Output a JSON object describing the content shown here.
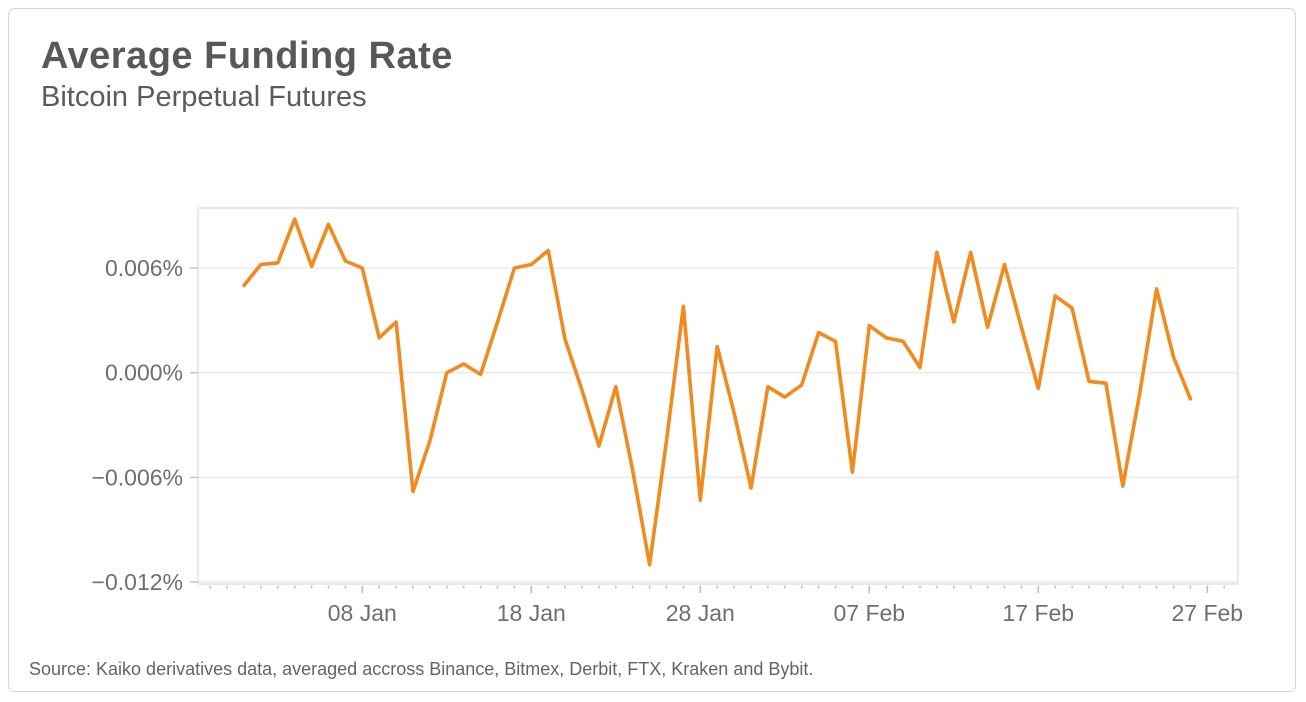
{
  "header": {
    "title": "Average Funding Rate",
    "subtitle": "Bitcoin Perpetual Futures"
  },
  "footer": {
    "source": "Source: Kaiko derivatives data, averaged accross Binance, Bitmex, Derbit, FTX, Kraken and Bybit."
  },
  "chart_data": {
    "type": "line",
    "title": "Average Funding Rate",
    "subtitle": "Bitcoin Perpetual Futures",
    "xlabel": "",
    "ylabel": "",
    "legend": "none",
    "grid": "horizontal",
    "ylim": [
      -0.0121,
      0.0094
    ],
    "line_color": "#f18a1f",
    "grid_color": "#ececec",
    "axis_border_color": "#dcdcdc",
    "tick_color": "#c6c6c6",
    "label_color": "#6f6f6f",
    "y_ticks": [
      {
        "label": "0.006%",
        "value": 0.006
      },
      {
        "label": "0.000%",
        "value": 0.0
      },
      {
        "label": "−0.006%",
        "value": -0.006
      },
      {
        "label": "−0.012%",
        "value": -0.012
      }
    ],
    "x_tick_labels": [
      "08 Jan",
      "18 Jan",
      "28 Jan",
      "07 Feb",
      "17 Feb",
      "27 Feb"
    ],
    "x": [
      "01 Jan",
      "02 Jan",
      "03 Jan",
      "04 Jan",
      "05 Jan",
      "06 Jan",
      "07 Jan",
      "08 Jan",
      "09 Jan",
      "10 Jan",
      "11 Jan",
      "12 Jan",
      "13 Jan",
      "14 Jan",
      "15 Jan",
      "16 Jan",
      "17 Jan",
      "18 Jan",
      "19 Jan",
      "20 Jan",
      "21 Jan",
      "22 Jan",
      "23 Jan",
      "24 Jan",
      "25 Jan",
      "26 Jan",
      "27 Jan",
      "28 Jan",
      "29 Jan",
      "30 Jan",
      "31 Jan",
      "01 Feb",
      "02 Feb",
      "03 Feb",
      "04 Feb",
      "05 Feb",
      "06 Feb",
      "07 Feb",
      "08 Feb",
      "09 Feb",
      "10 Feb",
      "11 Feb",
      "12 Feb",
      "13 Feb",
      "14 Feb",
      "15 Feb",
      "16 Feb",
      "17 Feb",
      "18 Feb",
      "19 Feb",
      "20 Feb",
      "21 Feb",
      "22 Feb",
      "23 Feb",
      "24 Feb",
      "25 Feb",
      "26 Feb"
    ],
    "series": [
      {
        "name": "Average funding rate (%)",
        "values": [
          0.005,
          0.0062,
          0.0063,
          0.0088,
          0.0061,
          0.0085,
          0.0064,
          0.006,
          0.002,
          0.0029,
          -0.0068,
          -0.0039,
          0.0,
          0.0005,
          -0.0001,
          0.0029,
          0.006,
          0.0062,
          0.007,
          0.0019,
          -0.001,
          -0.0042,
          -0.0008,
          -0.0056,
          -0.011,
          -0.0039,
          0.0038,
          -0.0073,
          0.0015,
          -0.0023,
          -0.0066,
          -0.0008,
          -0.0014,
          -0.0007,
          0.0023,
          0.0018,
          -0.0057,
          0.0027,
          0.002,
          0.0018,
          0.0003,
          0.0069,
          0.0029,
          0.0069,
          0.0026,
          0.0062,
          0.0026,
          -0.0009,
          0.0044,
          0.0037,
          -0.0005,
          -0.0006,
          -0.0065,
          -0.0012,
          0.0048,
          0.0009,
          -0.0015
        ]
      }
    ]
  }
}
